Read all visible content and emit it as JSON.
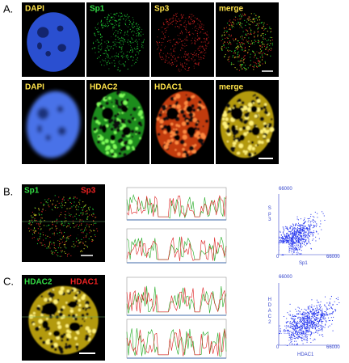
{
  "panel_a": {
    "label": "A.",
    "row1": [
      "DAPI",
      "Sp1",
      "Sp3",
      "merge"
    ],
    "row2": [
      "DAPI",
      "HDAC2",
      "HDAC1",
      "merge"
    ]
  },
  "panel_b": {
    "label": "B.",
    "channels": [
      "Sp1",
      "Sp3"
    ],
    "scatter": {
      "y_max": "66000",
      "origin": "0",
      "x_max": "66000",
      "x_label": "Sp1",
      "y_label": "Sp3"
    }
  },
  "panel_c": {
    "label": "C.",
    "channels": [
      "HDAC2",
      "HDAC1"
    ],
    "scatter": {
      "y_max": "66000",
      "origin": "0",
      "x_max": "66000",
      "x_label": "HDAC1",
      "y_label": "HDAC2"
    }
  }
}
